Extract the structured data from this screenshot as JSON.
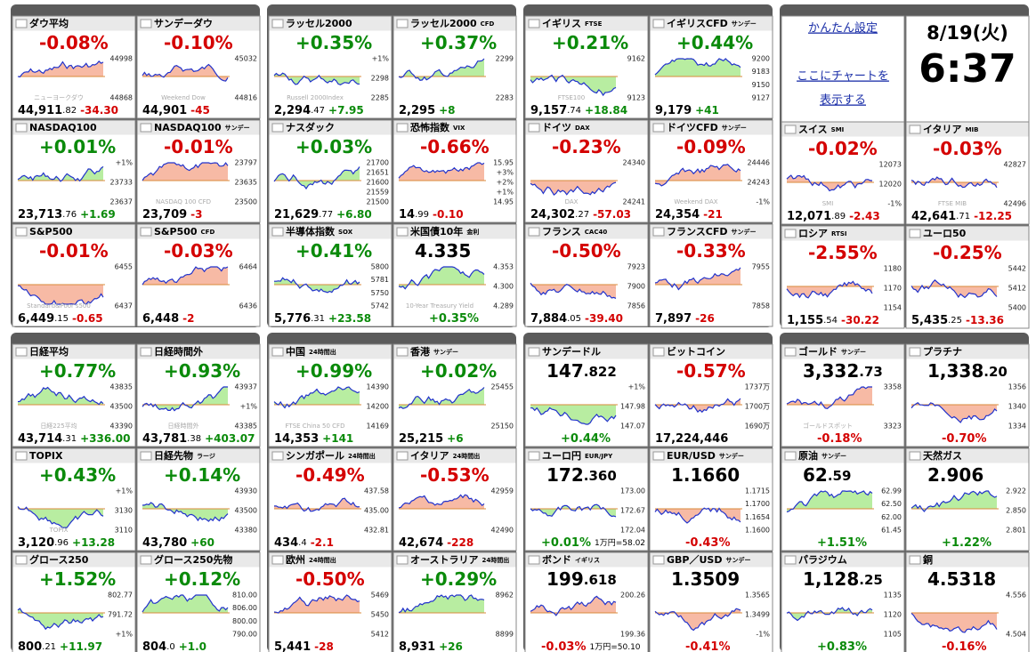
{
  "panels": [
    {
      "tiles": [
        {
          "name": "ダウ平均",
          "big": "-0.08%",
          "labels": [
            "44998",
            "44868",
            "ニューヨークダウ"
          ],
          "foot": "44,911",
          "foot_small": ".82",
          "foot_chg": "-34.30"
        },
        {
          "name": "サンデーダウ",
          "big": "-0.10%",
          "labels": [
            "45032",
            "44816",
            "Weekend Dow"
          ],
          "foot": "44,901",
          "foot_chg": "-45"
        },
        {
          "name": "NASDAQ100",
          "big": "+0.01%",
          "labels": [
            "+1%",
            "23733",
            "23637"
          ],
          "foot": "23,713",
          "foot_small": ".76",
          "foot_chg": "+1.69"
        },
        {
          "name": "NASDAQ100",
          "tag": "サンデー",
          "big": "-0.01%",
          "labels": [
            "23797",
            "23635",
            "23500",
            "NASDAQ 100 CFD"
          ],
          "foot": "23,709",
          "foot_chg": "-3"
        },
        {
          "name": "S&P500",
          "big": "-0.01%",
          "labels": [
            "6455",
            "6437",
            "Standard&Poor's500"
          ],
          "foot": "6,449",
          "foot_small": ".15",
          "foot_chg": "-0.65"
        },
        {
          "name": "S&P500",
          "tag": "CFD",
          "big": "-0.03%",
          "labels": [
            "6464",
            "6436"
          ],
          "foot": "6,448",
          "foot_chg": "-2"
        }
      ]
    },
    {
      "tiles": [
        {
          "name": "ラッセル2000",
          "big": "+0.35%",
          "labels": [
            "+1%",
            "2298",
            "2285",
            "Russell 2000Index"
          ],
          "foot": "2,294",
          "foot_small": ".47",
          "foot_chg": "+7.95"
        },
        {
          "name": "ラッセル2000",
          "tag": "CFD",
          "big": "+0.37%",
          "labels": [
            "2299",
            "2283"
          ],
          "foot": "2,295",
          "foot_chg": "+8"
        },
        {
          "name": "ナスダック",
          "big": "+0.03%",
          "labels": [
            "21700",
            "21651",
            "21600",
            "21559",
            "21500"
          ],
          "foot": "21,629",
          "foot_small": ".77",
          "foot_chg": "+6.80"
        },
        {
          "name": "恐怖指数",
          "tag": "VIX",
          "big": "-0.66%",
          "labels": [
            "15.95",
            "+3%",
            "+2%",
            "+1%",
            "14.95"
          ],
          "foot": "14",
          "foot_small": ".99",
          "foot_chg": "-0.10"
        },
        {
          "name": "半導体指数",
          "tag": "SOX",
          "big": "+0.41%",
          "labels": [
            "5800",
            "5781",
            "5750",
            "5742"
          ],
          "foot": "5,776",
          "foot_small": ".31",
          "foot_chg": "+23.58"
        },
        {
          "name": "米国債10年",
          "tag": "金利",
          "big": "4.335",
          "labels": [
            "4.353",
            "4.300",
            "4.289",
            "10-Year Treasury Yield"
          ],
          "foot": "+0.35%"
        }
      ]
    },
    {
      "tiles": [
        {
          "name": "イギリス",
          "tag": "FTSE",
          "big": "+0.21%",
          "labels": [
            "9162",
            "9123",
            "FTSE100"
          ],
          "foot": "9,157",
          "foot_small": ".74",
          "foot_chg": "+18.84"
        },
        {
          "name": "イギリスCFD",
          "tag": "サンデー",
          "big": "+0.44%",
          "labels": [
            "9200",
            "9183",
            "9150",
            "9127"
          ],
          "foot": "9,179",
          "foot_chg": "+41"
        },
        {
          "name": "ドイツ",
          "tag": "DAX",
          "big": "-0.23%",
          "labels": [
            "24340",
            "24241",
            "DAX"
          ],
          "foot": "24,302",
          "foot_small": ".27",
          "foot_chg": "-57.03"
        },
        {
          "name": "ドイツCFD",
          "tag": "サンデー",
          "big": "-0.09%",
          "labels": [
            "24446",
            "24243",
            "-1%",
            "Weekend DAX"
          ],
          "foot": "24,354",
          "foot_chg": "-21"
        },
        {
          "name": "フランス",
          "tag": "CAC40",
          "big": "-0.50%",
          "labels": [
            "7923",
            "7900",
            "7856"
          ],
          "foot": "7,884",
          "foot_small": ".05",
          "foot_chg": "-39.40"
        },
        {
          "name": "フランスCFD",
          "tag": "サンデー",
          "big": "-0.33%",
          "labels": [
            "7955",
            "7858"
          ],
          "foot": "7,897",
          "foot_chg": "-26"
        }
      ]
    },
    {
      "settings": {
        "link1": "かんたん設定",
        "link2a": "ここにチャートを",
        "link2b": "表示する"
      },
      "clock": {
        "date": "8/19(火)",
        "time": "6:37"
      },
      "tiles": [
        {
          "name": "スイス",
          "tag": "SMI",
          "big": "-0.02%",
          "labels": [
            "12073",
            "12020",
            "-1%",
            "SMI"
          ],
          "foot": "12,071",
          "foot_small": ".89",
          "foot_chg": "-2.43"
        },
        {
          "name": "イタリア",
          "tag": "MIB",
          "big": "-0.03%",
          "labels": [
            "42827",
            "42496",
            "FTSE MIB"
          ],
          "foot": "42,641",
          "foot_small": ".71",
          "foot_chg": "-12.25"
        },
        {
          "name": "ロシア",
          "tag": "RTSI",
          "big": "-2.55%",
          "labels": [
            "1180",
            "1170",
            "1154"
          ],
          "foot": "1,155",
          "foot_small": ".54",
          "foot_chg": "-30.22"
        },
        {
          "name": "ユーロ50",
          "big": "-0.25%",
          "labels": [
            "5442",
            "5412",
            "5400"
          ],
          "foot": "5,435",
          "foot_small": ".25",
          "foot_chg": "-13.36"
        }
      ]
    },
    {
      "tiles": [
        {
          "name": "日経平均",
          "big": "+0.77%",
          "labels": [
            "43835",
            "43500",
            "43390",
            "日経225平均"
          ],
          "foot": "43,714",
          "foot_small": ".31",
          "foot_chg": "+336.00"
        },
        {
          "name": "日経時間外",
          "big": "+0.93%",
          "labels": [
            "43937",
            "+1%",
            "43385",
            "日経時間外"
          ],
          "foot": "43,781",
          "foot_small": ".38",
          "foot_chg": "+403.07"
        },
        {
          "name": "TOPIX",
          "big": "+0.43%",
          "labels": [
            "+1%",
            "3130",
            "3110",
            "TOPIX"
          ],
          "foot": "3,120",
          "foot_small": ".96",
          "foot_chg": "+13.28"
        },
        {
          "name": "日経先物",
          "tag": "ラージ",
          "big": "+0.14%",
          "labels": [
            "43930",
            "43500",
            "43380"
          ],
          "foot": "43,780",
          "foot_chg": "+60"
        },
        {
          "name": "グロース250",
          "big": "+1.52%",
          "labels": [
            "802.77",
            "791.72",
            "+1%"
          ],
          "foot": "800",
          "foot_small": ".21",
          "foot_chg": "+11.97"
        },
        {
          "name": "グロース250先物",
          "big": "+0.12%",
          "labels": [
            "810.00",
            "806.00",
            "800.00",
            "790.00"
          ],
          "foot": "804",
          "foot_small": ".0",
          "foot_chg": "+1.0"
        }
      ]
    },
    {
      "tiles": [
        {
          "name": "中国",
          "tag": "24時間出",
          "big": "+0.99%",
          "labels": [
            "14390",
            "14200",
            "14169",
            "FTSE China 50 CFD"
          ],
          "foot": "14,353",
          "foot_chg": "+141"
        },
        {
          "name": "香港",
          "tag": "サンデー",
          "big": "+0.02%",
          "labels": [
            "25455",
            "25150"
          ],
          "foot": "25,215",
          "foot_chg": "+6"
        },
        {
          "name": "シンガポール",
          "tag": "24時間出",
          "big": "-0.49%",
          "labels": [
            "437.58",
            "435.00",
            "432.81"
          ],
          "foot": "434",
          "foot_small": ".4",
          "foot_chg": "-2.1"
        },
        {
          "name": "イタリア",
          "tag": "24時間出",
          "big": "-0.53%",
          "labels": [
            "42959",
            "42490"
          ],
          "foot": "42,674",
          "foot_chg": "-228"
        },
        {
          "name": "欧州",
          "tag": "24時間出",
          "big": "-0.50%",
          "labels": [
            "5469",
            "5450",
            "5412"
          ],
          "foot": "5,441",
          "foot_chg": "-28"
        },
        {
          "name": "オーストラリア",
          "tag": "24時間出",
          "big": "+0.29%",
          "labels": [
            "8962",
            "8899"
          ],
          "foot": "8,931",
          "foot_chg": "+26"
        }
      ]
    },
    {
      "tiles": [
        {
          "name": "サンデードル",
          "big": "147",
          "big_small": ".822",
          "labels": [
            "+1%",
            "147.98",
            "147.07"
          ],
          "foot": "+0.44%"
        },
        {
          "name": "ビットコイン",
          "big": "-0.57%",
          "labels": [
            "1737万",
            "1700万",
            "1690万"
          ],
          "foot": "17,224,446"
        },
        {
          "name": "ユーロ円",
          "tag": "EUR/JPY",
          "big": "172",
          "big_small": ".360",
          "labels": [
            "173.00",
            "172.67",
            "172.04"
          ],
          "foot": "+0.01%",
          "foot_chg": "1万円=58.02"
        },
        {
          "name": "EUR/USD",
          "tag": "サンデー",
          "big": "1.1660",
          "labels": [
            "1.1715",
            "1.1700",
            "1.1654",
            "1.1600"
          ],
          "foot": "-0.43%"
        },
        {
          "name": "ボンド",
          "tag": "イギリス",
          "big": "199",
          "big_small": ".618",
          "labels": [
            "200.26",
            "199.36"
          ],
          "foot": "-0.03%",
          "foot_chg": "1万円=50.10"
        },
        {
          "name": "GBP／USD",
          "tag": "サンデー",
          "big": "1.3509",
          "labels": [
            "1.3565",
            "1.3499",
            "-1%"
          ],
          "foot": "-0.41%"
        }
      ]
    },
    {
      "tiles": [
        {
          "name": "ゴールド",
          "tag": "サンデー",
          "big": "3,332",
          "big_small": ".73",
          "labels": [
            "3358",
            "3323",
            "ゴールドスポット"
          ],
          "foot": "-0.18%"
        },
        {
          "name": "プラチナ",
          "big": "1,338",
          "big_small": ".20",
          "labels": [
            "1356",
            "1340",
            "1334"
          ],
          "foot": "-0.70%"
        },
        {
          "name": "原油",
          "tag": "サンデー",
          "big": "62",
          "big_small": ".59",
          "labels": [
            "62.99",
            "62.50",
            "62.00",
            "61.45"
          ],
          "foot": "+1.51%"
        },
        {
          "name": "天然ガス",
          "big": "2.906",
          "labels": [
            "2.922",
            "2.850",
            "2.801"
          ],
          "foot": "+1.22%"
        },
        {
          "name": "パラジウム",
          "big": "1,128",
          "big_small": ".25",
          "labels": [
            "1135",
            "1120",
            "1105"
          ],
          "foot": "+0.83%"
        },
        {
          "name": "銅",
          "big": "4.5318",
          "labels": [
            "4.556",
            "4.504"
          ],
          "foot": "-0.16%"
        }
      ]
    }
  ]
}
